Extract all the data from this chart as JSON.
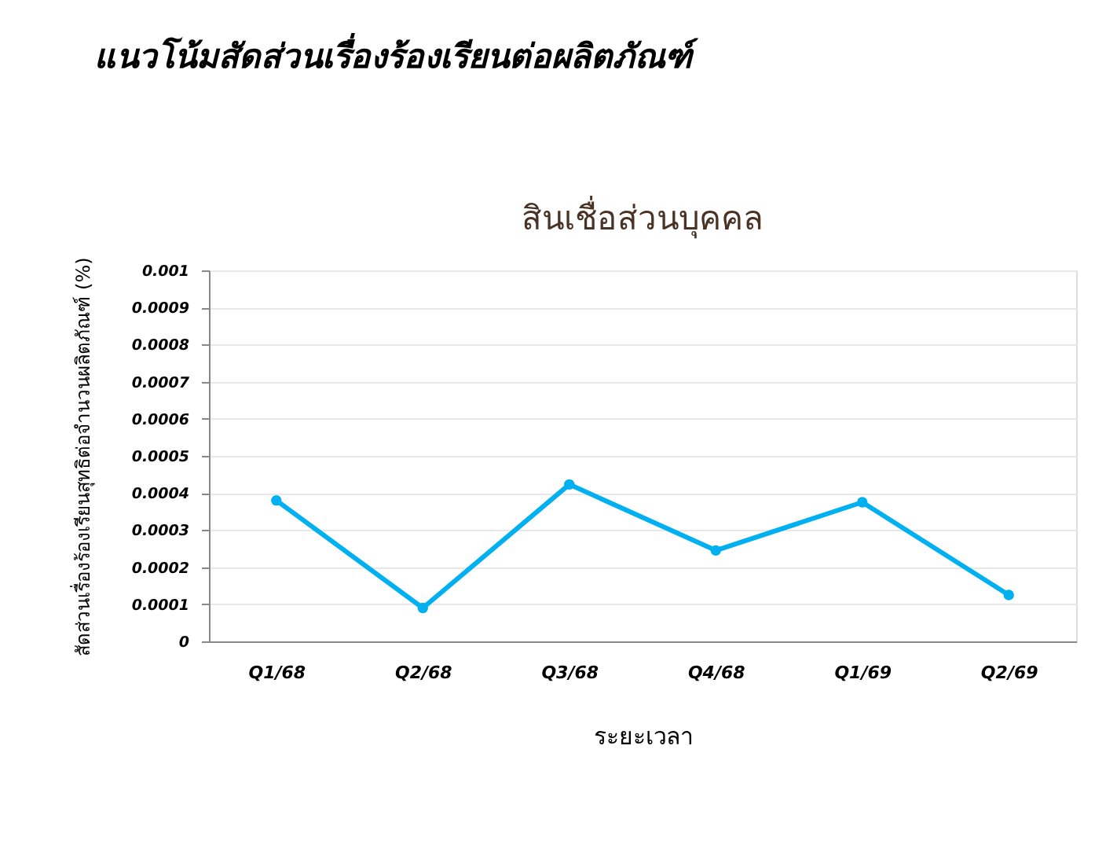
{
  "chart_data": {
    "type": "line",
    "title": "แนวโน้มสัดส่วนเรื่องร้องเรียนต่อผลิตภัณฑ์",
    "subtitle": "สินเชื่อส่วนบุคคล",
    "xlabel": "ระยะเวลา",
    "ylabel": "สัดส่วนเรื่องร้องเรียนสุทธิต่อจำนวนผลิตภัณฑ์ (%)",
    "categories": [
      "Q1/68",
      "Q2/68",
      "Q3/68",
      "Q4/68",
      "Q1/69",
      "Q2/69"
    ],
    "series": [
      {
        "color": "#00b0f0",
        "values": [
          0.00038,
          9e-05,
          0.000423,
          0.000245,
          0.000375,
          0.000125
        ]
      }
    ],
    "ylim": [
      0,
      0.001
    ],
    "yticks": [
      0,
      0.0001,
      0.0002,
      0.0003,
      0.0004,
      0.0005,
      0.0006,
      0.0007,
      0.0008,
      0.0009,
      0.001
    ],
    "grid": "y",
    "marker": "circle",
    "line_style": "solid"
  }
}
